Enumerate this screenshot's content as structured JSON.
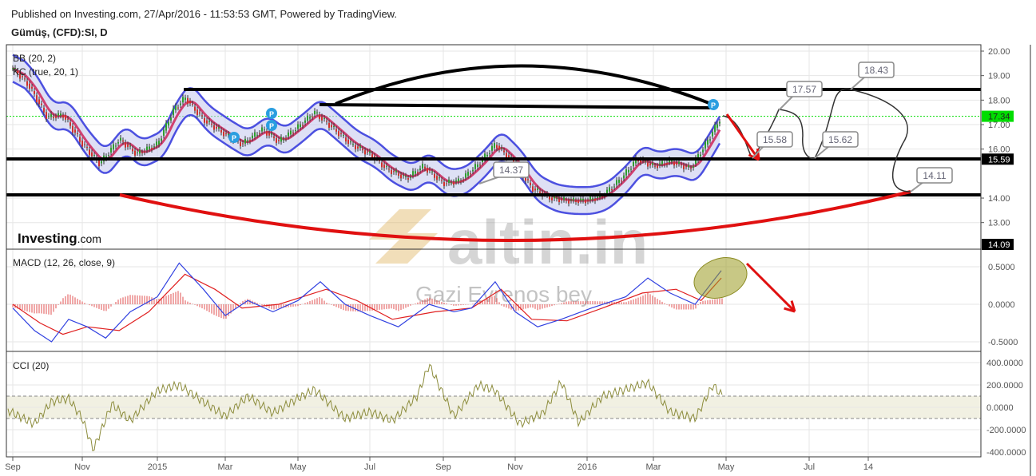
{
  "header": {
    "published": "Published on Investing.com, 27/Apr/2016 - 11:53:53 GMT, Powered by TradingView.",
    "symbol": "Gümüş, (CFD):SI, D"
  },
  "branding": {
    "logo_bold": "Investing",
    "logo_suffix": ".com",
    "watermark": "altin.in",
    "watermark_author": "Gazi Evrenos bey"
  },
  "colors": {
    "up": "#2e9e2e",
    "down": "#d0312d",
    "bands": "#4c50e0",
    "macd": "#3040e0",
    "signal": "#e02020",
    "cci": "#8c8c3c",
    "current": "#00dd00"
  },
  "chart_data": [
    {
      "type": "candlestick",
      "pane": "price",
      "indicators": [
        "BB (20, 2)",
        "KC (true, 20, 1)"
      ],
      "yticks": [
        "20.00",
        "19.00",
        "18.00",
        "17.00",
        "16.00",
        "14.00",
        "13.00"
      ],
      "ylim": [
        12.5,
        20.3
      ],
      "current_price": "17.34",
      "level_labels": [
        "15.59",
        "14.09"
      ],
      "closes": [
        [
          "2014-09-01",
          19.3
        ],
        [
          "2014-09-15",
          18.6
        ],
        [
          "2014-10-01",
          17.3
        ],
        [
          "2014-10-15",
          17.4
        ],
        [
          "2014-11-01",
          16.2
        ],
        [
          "2014-11-15",
          15.4
        ],
        [
          "2014-12-01",
          16.4
        ],
        [
          "2014-12-15",
          15.8
        ],
        [
          "2015-01-01",
          16.2
        ],
        [
          "2015-01-15",
          17.6
        ],
        [
          "2015-01-25",
          18.1
        ],
        [
          "2015-02-10",
          17.2
        ],
        [
          "2015-03-01",
          16.6
        ],
        [
          "2015-03-15",
          16.2
        ],
        [
          "2015-04-01",
          16.8
        ],
        [
          "2015-04-15",
          16.3
        ],
        [
          "2015-05-01",
          16.9
        ],
        [
          "2015-05-15",
          17.5
        ],
        [
          "2015-06-01",
          16.8
        ],
        [
          "2015-06-15",
          16.2
        ],
        [
          "2015-07-01",
          15.8
        ],
        [
          "2015-07-15",
          15.2
        ],
        [
          "2015-08-01",
          14.8
        ],
        [
          "2015-08-15",
          15.3
        ],
        [
          "2015-09-01",
          14.6
        ],
        [
          "2015-09-15",
          14.7
        ],
        [
          "2015-10-01",
          15.4
        ],
        [
          "2015-10-15",
          16.2
        ],
        [
          "2015-11-01",
          15.4
        ],
        [
          "2015-11-15",
          14.4
        ],
        [
          "2015-12-01",
          14.0
        ],
        [
          "2015-12-15",
          13.9
        ],
        [
          "2016-01-01",
          13.9
        ],
        [
          "2016-01-15",
          14.1
        ],
        [
          "2016-02-01",
          14.8
        ],
        [
          "2016-02-15",
          15.6
        ],
        [
          "2016-03-01",
          15.3
        ],
        [
          "2016-03-15",
          15.5
        ],
        [
          "2016-04-01",
          15.2
        ],
        [
          "2016-04-15",
          16.3
        ],
        [
          "2016-04-27",
          17.34
        ]
      ],
      "annotations": [
        "17.57",
        "15.58",
        "15.62",
        "18.43",
        "14.11",
        "14.37"
      ]
    },
    {
      "type": "line",
      "pane": "macd",
      "title": "MACD (12, 26, close, 9)",
      "yticks": [
        "0.5000",
        "0.0000",
        "-0.5000"
      ],
      "ylim": [
        -0.6,
        0.6
      ],
      "macd": [
        [
          "2014-09-01",
          -0.05
        ],
        [
          "2014-09-20",
          -0.35
        ],
        [
          "2014-10-05",
          -0.5
        ],
        [
          "2014-10-20",
          -0.2
        ],
        [
          "2014-11-05",
          -0.3
        ],
        [
          "2014-11-20",
          -0.45
        ],
        [
          "2014-12-10",
          -0.1
        ],
        [
          "2015-01-01",
          0.1
        ],
        [
          "2015-01-20",
          0.55
        ],
        [
          "2015-02-10",
          0.2
        ],
        [
          "2015-03-01",
          -0.15
        ],
        [
          "2015-03-20",
          0.05
        ],
        [
          "2015-04-10",
          -0.1
        ],
        [
          "2015-05-01",
          0.05
        ],
        [
          "2015-05-20",
          0.3
        ],
        [
          "2015-06-10",
          0.0
        ],
        [
          "2015-07-01",
          -0.15
        ],
        [
          "2015-07-25",
          -0.3
        ],
        [
          "2015-08-20",
          0.0
        ],
        [
          "2015-09-10",
          -0.1
        ],
        [
          "2015-09-25",
          -0.05
        ],
        [
          "2015-10-15",
          0.3
        ],
        [
          "2015-11-01",
          -0.1
        ],
        [
          "2015-11-20",
          -0.3
        ],
        [
          "2015-12-10",
          -0.2
        ],
        [
          "2016-01-05",
          -0.05
        ],
        [
          "2016-02-05",
          0.1
        ],
        [
          "2016-02-25",
          0.35
        ],
        [
          "2016-03-15",
          0.15
        ],
        [
          "2016-04-05",
          0.0
        ],
        [
          "2016-04-27",
          0.45
        ]
      ],
      "signal": [
        [
          "2014-09-01",
          0.0
        ],
        [
          "2014-09-25",
          -0.25
        ],
        [
          "2014-10-15",
          -0.4
        ],
        [
          "2014-11-05",
          -0.3
        ],
        [
          "2014-12-01",
          -0.35
        ],
        [
          "2014-12-25",
          -0.1
        ],
        [
          "2015-01-25",
          0.4
        ],
        [
          "2015-02-20",
          0.2
        ],
        [
          "2015-03-15",
          -0.05
        ],
        [
          "2015-04-15",
          0.0
        ],
        [
          "2015-05-25",
          0.2
        ],
        [
          "2015-06-20",
          0.05
        ],
        [
          "2015-07-20",
          -0.2
        ],
        [
          "2015-08-25",
          -0.1
        ],
        [
          "2015-09-25",
          -0.05
        ],
        [
          "2015-10-20",
          0.2
        ],
        [
          "2015-11-15",
          -0.2
        ],
        [
          "2015-12-15",
          -0.22
        ],
        [
          "2016-01-15",
          -0.05
        ],
        [
          "2016-02-20",
          0.15
        ],
        [
          "2016-03-20",
          0.2
        ],
        [
          "2016-04-10",
          0.05
        ],
        [
          "2016-04-27",
          0.35
        ]
      ]
    },
    {
      "type": "line",
      "pane": "cci",
      "title": "CCI (20)",
      "yticks": [
        "400.0000",
        "200.0000",
        "0.0000",
        "-200.0000",
        "-400.0000"
      ],
      "ylim": [
        -430,
        430
      ],
      "band": [
        -100,
        100
      ],
      "values": [
        [
          "2014-09-01",
          -50
        ],
        [
          "2014-09-20",
          -150
        ],
        [
          "2014-10-05",
          50
        ],
        [
          "2014-10-20",
          80
        ],
        [
          "2014-11-01",
          -100
        ],
        [
          "2014-11-10",
          -380
        ],
        [
          "2014-11-25",
          30
        ],
        [
          "2014-12-10",
          -120
        ],
        [
          "2015-01-01",
          150
        ],
        [
          "2015-01-20",
          200
        ],
        [
          "2015-02-10",
          50
        ],
        [
          "2015-03-01",
          -80
        ],
        [
          "2015-03-20",
          100
        ],
        [
          "2015-04-10",
          -50
        ],
        [
          "2015-05-01",
          80
        ],
        [
          "2015-05-15",
          160
        ],
        [
          "2015-06-10",
          -100
        ],
        [
          "2015-07-01",
          -40
        ],
        [
          "2015-07-20",
          -120
        ],
        [
          "2015-08-10",
          100
        ],
        [
          "2015-08-20",
          380
        ],
        [
          "2015-09-10",
          -80
        ],
        [
          "2015-10-01",
          200
        ],
        [
          "2015-10-15",
          150
        ],
        [
          "2015-11-05",
          -150
        ],
        [
          "2015-11-25",
          -50
        ],
        [
          "2015-12-10",
          230
        ],
        [
          "2015-12-25",
          -140
        ],
        [
          "2016-01-15",
          100
        ],
        [
          "2016-02-05",
          160
        ],
        [
          "2016-02-25",
          220
        ],
        [
          "2016-03-15",
          -40
        ],
        [
          "2016-04-05",
          -100
        ],
        [
          "2016-04-20",
          200
        ],
        [
          "2016-04-27",
          110
        ]
      ]
    }
  ],
  "xaxis": {
    "ticks": [
      "Sep",
      "Nov",
      "2015",
      "Mar",
      "May",
      "Jul",
      "Sep",
      "Nov",
      "2016",
      "Mar",
      "May",
      "Jul",
      "14"
    ]
  }
}
